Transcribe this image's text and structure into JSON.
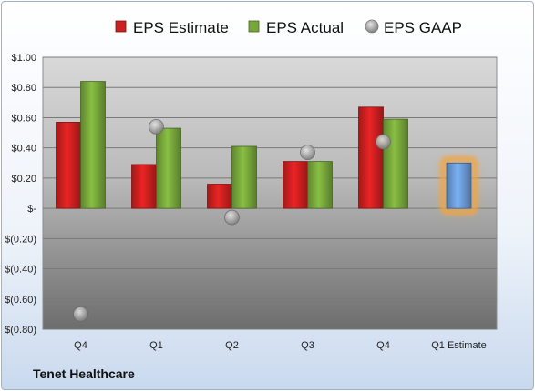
{
  "chart_data": {
    "type": "bar",
    "company": "Tenet Healthcare",
    "categories": [
      "Q4",
      "Q1",
      "Q2",
      "Q3",
      "Q4",
      "Q1 Estimate"
    ],
    "series": [
      {
        "name": "EPS Estimate",
        "kind": "bar",
        "color": "#cc1f1f",
        "values": [
          0.57,
          0.29,
          0.16,
          0.31,
          0.67,
          null
        ]
      },
      {
        "name": "EPS Actual",
        "kind": "bar",
        "color": "#77a63b",
        "values": [
          0.84,
          0.53,
          0.41,
          0.31,
          0.59,
          null
        ]
      },
      {
        "name": "EPS GAAP",
        "kind": "point",
        "color": "#9a9a9a",
        "values": [
          -0.7,
          0.54,
          -0.06,
          0.37,
          0.44,
          null
        ]
      },
      {
        "name": "",
        "kind": "bar",
        "color": "#6a9ad6",
        "highlight": "#f3a43e",
        "values": [
          null,
          null,
          null,
          null,
          null,
          0.3
        ]
      }
    ],
    "yticks": [
      1.0,
      0.8,
      0.6,
      0.4,
      0.2,
      0,
      -0.2,
      -0.4,
      -0.6,
      -0.8
    ],
    "ytick_labels": [
      "$1.00",
      "$0.80",
      "$0.60",
      "$0.40",
      "$0.20",
      "$-",
      "$(0.20)",
      "$(0.40)",
      "$(0.60)",
      "$(0.80)"
    ],
    "ylim": [
      -0.8,
      1.0
    ],
    "grid": true,
    "legend_position": "top"
  }
}
